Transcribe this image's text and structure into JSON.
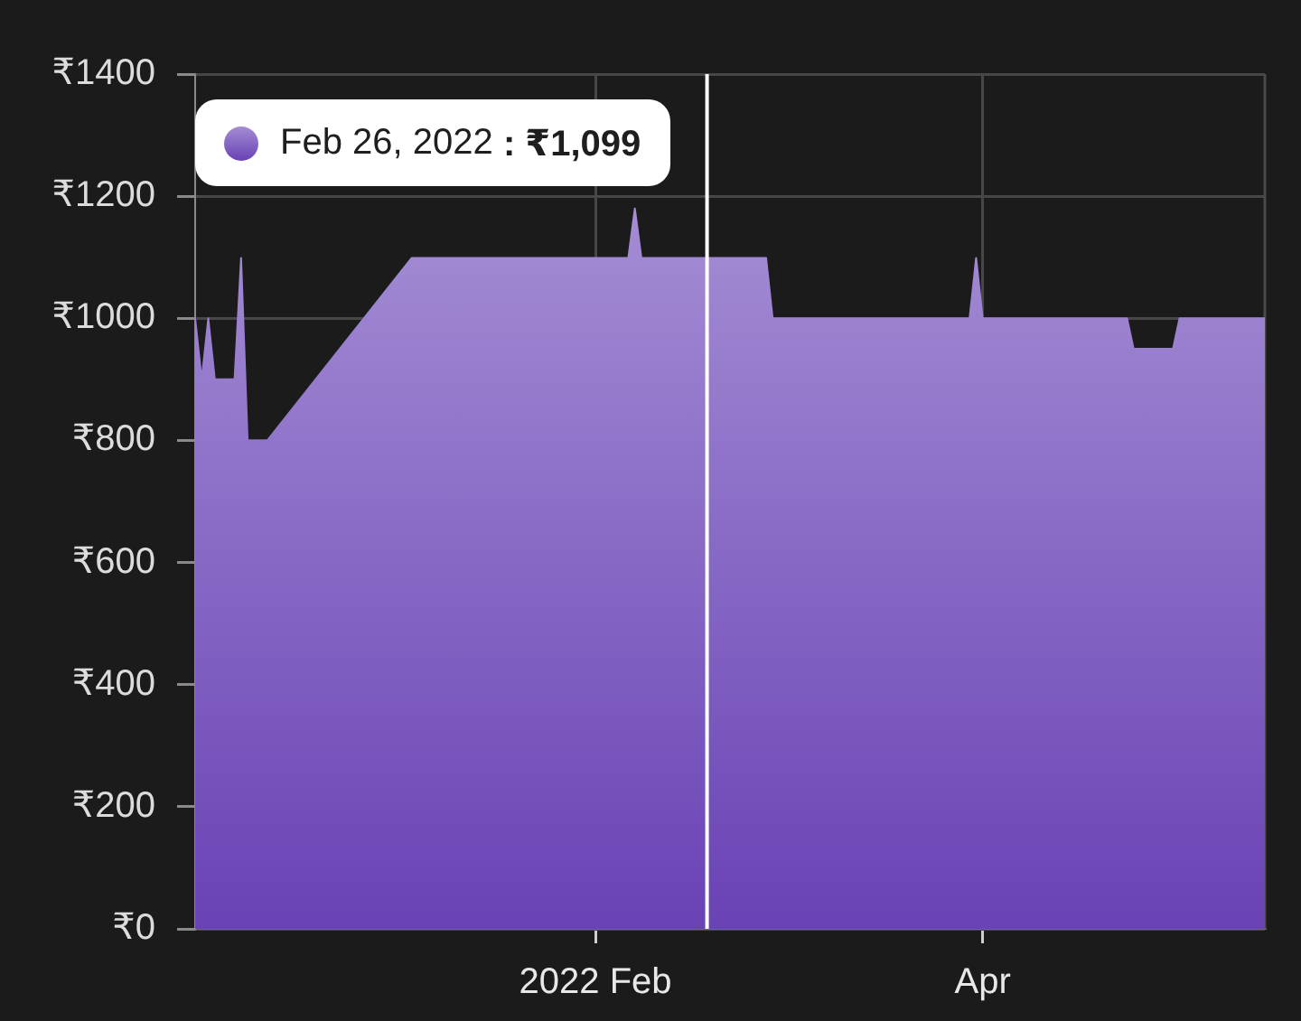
{
  "chart_data": {
    "type": "area",
    "x": [
      "2021-12-02",
      "2021-12-03",
      "2021-12-04",
      "2021-12-05",
      "2021-12-08",
      "2021-12-09",
      "2021-12-10",
      "2021-12-13",
      "2022-01-04",
      "2022-02-06",
      "2022-02-07",
      "2022-02-08",
      "2022-02-27",
      "2022-02-28",
      "2022-03-30",
      "2022-03-31",
      "2022-04-01",
      "2022-04-23",
      "2022-04-24",
      "2022-04-30",
      "2022-05-01",
      "2022-05-14"
    ],
    "values": [
      1000,
      900,
      1000,
      900,
      900,
      1099,
      800,
      800,
      1099,
      1099,
      1180,
      1099,
      1099,
      1000,
      1000,
      1099,
      1000,
      1000,
      950,
      950,
      1000,
      1000
    ],
    "color": "#8667c6",
    "xlim": [
      "2021-12-02",
      "2022-05-14"
    ],
    "xticks": [
      {
        "value": "2022-02-01",
        "label": "2022 Feb"
      },
      {
        "value": "2022-04-01",
        "label": "Apr"
      }
    ],
    "ylim": [
      0,
      1400
    ],
    "yticks": [
      {
        "value": 0,
        "label": "₹0"
      },
      {
        "value": 200,
        "label": "₹200"
      },
      {
        "value": 400,
        "label": "₹400"
      },
      {
        "value": 600,
        "label": "₹600"
      },
      {
        "value": 800,
        "label": "₹800"
      },
      {
        "value": 1000,
        "label": "₹1000"
      },
      {
        "value": 1200,
        "label": "₹1200"
      },
      {
        "value": 1400,
        "label": "₹1400"
      }
    ],
    "grid": true,
    "legend": false,
    "ref_lines": [
      {
        "axis": "x",
        "value": "2022-02-18",
        "color": "#ffffff"
      }
    ],
    "annotations": [
      "Feb 26, 2022 : ₹1,099"
    ]
  }
}
